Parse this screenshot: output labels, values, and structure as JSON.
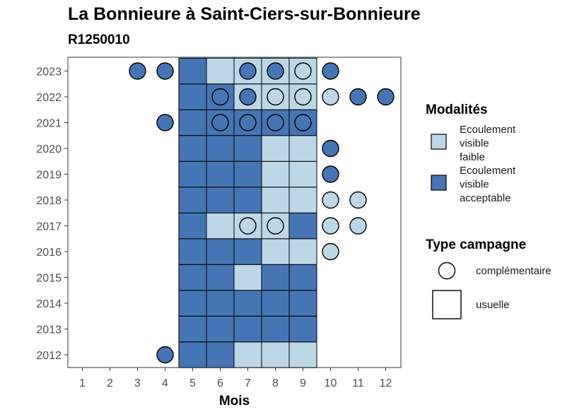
{
  "chart_data": {
    "type": "heatmap",
    "title": "La Bonnieure à Saint-Ciers-sur-Bonnieure",
    "subtitle": "R1250010",
    "xlabel": "Mois",
    "ylabel": "",
    "x_ticks": [
      "1",
      "2",
      "3",
      "4",
      "5",
      "6",
      "7",
      "8",
      "9",
      "10",
      "11",
      "12"
    ],
    "y_ticks": [
      "2012",
      "2013",
      "2014",
      "2015",
      "2016",
      "2017",
      "2018",
      "2019",
      "2020",
      "2021",
      "2022",
      "2023"
    ],
    "colors": {
      "faible": "#bdd7e7",
      "acceptable": "#4575b4",
      "outline": "#000000"
    },
    "legend": {
      "modalites_title": "Modalités",
      "modalites": [
        {
          "key": "faible",
          "lines": [
            "Ecoulement",
            "visible",
            "faible"
          ]
        },
        {
          "key": "acceptable",
          "lines": [
            "Ecoulement",
            "visible",
            "acceptable"
          ]
        }
      ],
      "type_title": "Type campagne",
      "types": [
        {
          "key": "circle",
          "label": "complémentaire"
        },
        {
          "key": "square",
          "label": "usuelle"
        }
      ]
    },
    "observations": [
      {
        "year": 2012,
        "month": 4,
        "type": "complementaire",
        "modalite": "acceptable"
      },
      {
        "year": 2012,
        "month": 5,
        "type": "usuelle",
        "modalite": "acceptable"
      },
      {
        "year": 2012,
        "month": 6,
        "type": "usuelle",
        "modalite": "acceptable"
      },
      {
        "year": 2012,
        "month": 7,
        "type": "usuelle",
        "modalite": "faible"
      },
      {
        "year": 2012,
        "month": 8,
        "type": "usuelle",
        "modalite": "faible"
      },
      {
        "year": 2012,
        "month": 9,
        "type": "usuelle",
        "modalite": "faible"
      },
      {
        "year": 2013,
        "month": 5,
        "type": "usuelle",
        "modalite": "acceptable"
      },
      {
        "year": 2013,
        "month": 6,
        "type": "usuelle",
        "modalite": "acceptable"
      },
      {
        "year": 2013,
        "month": 7,
        "type": "usuelle",
        "modalite": "acceptable"
      },
      {
        "year": 2013,
        "month": 8,
        "type": "usuelle",
        "modalite": "acceptable"
      },
      {
        "year": 2013,
        "month": 9,
        "type": "usuelle",
        "modalite": "acceptable"
      },
      {
        "year": 2014,
        "month": 5,
        "type": "usuelle",
        "modalite": "acceptable"
      },
      {
        "year": 2014,
        "month": 6,
        "type": "usuelle",
        "modalite": "acceptable"
      },
      {
        "year": 2014,
        "month": 7,
        "type": "usuelle",
        "modalite": "acceptable"
      },
      {
        "year": 2014,
        "month": 8,
        "type": "usuelle",
        "modalite": "acceptable"
      },
      {
        "year": 2014,
        "month": 9,
        "type": "usuelle",
        "modalite": "acceptable"
      },
      {
        "year": 2015,
        "month": 5,
        "type": "usuelle",
        "modalite": "acceptable"
      },
      {
        "year": 2015,
        "month": 6,
        "type": "usuelle",
        "modalite": "acceptable"
      },
      {
        "year": 2015,
        "month": 7,
        "type": "usuelle",
        "modalite": "faible"
      },
      {
        "year": 2015,
        "month": 8,
        "type": "usuelle",
        "modalite": "acceptable"
      },
      {
        "year": 2015,
        "month": 9,
        "type": "usuelle",
        "modalite": "acceptable"
      },
      {
        "year": 2016,
        "month": 5,
        "type": "usuelle",
        "modalite": "acceptable"
      },
      {
        "year": 2016,
        "month": 6,
        "type": "usuelle",
        "modalite": "acceptable"
      },
      {
        "year": 2016,
        "month": 7,
        "type": "usuelle",
        "modalite": "acceptable"
      },
      {
        "year": 2016,
        "month": 8,
        "type": "usuelle",
        "modalite": "faible"
      },
      {
        "year": 2016,
        "month": 9,
        "type": "usuelle",
        "modalite": "faible"
      },
      {
        "year": 2016,
        "month": 10,
        "type": "complementaire",
        "modalite": "faible"
      },
      {
        "year": 2017,
        "month": 5,
        "type": "usuelle",
        "modalite": "acceptable"
      },
      {
        "year": 2017,
        "month": 6,
        "type": "usuelle",
        "modalite": "faible"
      },
      {
        "year": 2017,
        "month": 7,
        "type": "usuelle",
        "modalite": "faible"
      },
      {
        "year": 2017,
        "month": 7,
        "type": "complementaire",
        "modalite": "faible"
      },
      {
        "year": 2017,
        "month": 8,
        "type": "usuelle",
        "modalite": "faible"
      },
      {
        "year": 2017,
        "month": 8,
        "type": "complementaire",
        "modalite": "faible"
      },
      {
        "year": 2017,
        "month": 9,
        "type": "usuelle",
        "modalite": "acceptable"
      },
      {
        "year": 2017,
        "month": 10,
        "type": "complementaire",
        "modalite": "faible"
      },
      {
        "year": 2017,
        "month": 11,
        "type": "complementaire",
        "modalite": "faible"
      },
      {
        "year": 2018,
        "month": 5,
        "type": "usuelle",
        "modalite": "acceptable"
      },
      {
        "year": 2018,
        "month": 6,
        "type": "usuelle",
        "modalite": "acceptable"
      },
      {
        "year": 2018,
        "month": 7,
        "type": "usuelle",
        "modalite": "acceptable"
      },
      {
        "year": 2018,
        "month": 8,
        "type": "usuelle",
        "modalite": "faible"
      },
      {
        "year": 2018,
        "month": 9,
        "type": "usuelle",
        "modalite": "faible"
      },
      {
        "year": 2018,
        "month": 10,
        "type": "complementaire",
        "modalite": "faible"
      },
      {
        "year": 2018,
        "month": 11,
        "type": "complementaire",
        "modalite": "faible"
      },
      {
        "year": 2019,
        "month": 5,
        "type": "usuelle",
        "modalite": "acceptable"
      },
      {
        "year": 2019,
        "month": 6,
        "type": "usuelle",
        "modalite": "acceptable"
      },
      {
        "year": 2019,
        "month": 7,
        "type": "usuelle",
        "modalite": "acceptable"
      },
      {
        "year": 2019,
        "month": 8,
        "type": "usuelle",
        "modalite": "faible"
      },
      {
        "year": 2019,
        "month": 9,
        "type": "usuelle",
        "modalite": "faible"
      },
      {
        "year": 2019,
        "month": 10,
        "type": "complementaire",
        "modalite": "acceptable"
      },
      {
        "year": 2020,
        "month": 5,
        "type": "usuelle",
        "modalite": "acceptable"
      },
      {
        "year": 2020,
        "month": 6,
        "type": "usuelle",
        "modalite": "acceptable"
      },
      {
        "year": 2020,
        "month": 7,
        "type": "usuelle",
        "modalite": "acceptable"
      },
      {
        "year": 2020,
        "month": 8,
        "type": "usuelle",
        "modalite": "faible"
      },
      {
        "year": 2020,
        "month": 9,
        "type": "usuelle",
        "modalite": "faible"
      },
      {
        "year": 2020,
        "month": 10,
        "type": "complementaire",
        "modalite": "acceptable"
      },
      {
        "year": 2021,
        "month": 4,
        "type": "complementaire",
        "modalite": "acceptable"
      },
      {
        "year": 2021,
        "month": 5,
        "type": "usuelle",
        "modalite": "acceptable"
      },
      {
        "year": 2021,
        "month": 6,
        "type": "usuelle",
        "modalite": "acceptable"
      },
      {
        "year": 2021,
        "month": 6,
        "type": "complementaire",
        "modalite": "acceptable"
      },
      {
        "year": 2021,
        "month": 7,
        "type": "usuelle",
        "modalite": "acceptable"
      },
      {
        "year": 2021,
        "month": 7,
        "type": "complementaire",
        "modalite": "acceptable"
      },
      {
        "year": 2021,
        "month": 8,
        "type": "usuelle",
        "modalite": "acceptable"
      },
      {
        "year": 2021,
        "month": 8,
        "type": "complementaire",
        "modalite": "acceptable"
      },
      {
        "year": 2021,
        "month": 9,
        "type": "usuelle",
        "modalite": "acceptable"
      },
      {
        "year": 2021,
        "month": 9,
        "type": "complementaire",
        "modalite": "acceptable"
      },
      {
        "year": 2022,
        "month": 5,
        "type": "usuelle",
        "modalite": "acceptable"
      },
      {
        "year": 2022,
        "month": 6,
        "type": "usuelle",
        "modalite": "acceptable"
      },
      {
        "year": 2022,
        "month": 6,
        "type": "complementaire",
        "modalite": "acceptable"
      },
      {
        "year": 2022,
        "month": 7,
        "type": "usuelle",
        "modalite": "faible"
      },
      {
        "year": 2022,
        "month": 7,
        "type": "complementaire",
        "modalite": "acceptable"
      },
      {
        "year": 2022,
        "month": 8,
        "type": "usuelle",
        "modalite": "faible"
      },
      {
        "year": 2022,
        "month": 8,
        "type": "complementaire",
        "modalite": "faible"
      },
      {
        "year": 2022,
        "month": 9,
        "type": "usuelle",
        "modalite": "faible"
      },
      {
        "year": 2022,
        "month": 9,
        "type": "complementaire",
        "modalite": "faible"
      },
      {
        "year": 2022,
        "month": 10,
        "type": "complementaire",
        "modalite": "faible"
      },
      {
        "year": 2022,
        "month": 11,
        "type": "complementaire",
        "modalite": "acceptable"
      },
      {
        "year": 2022,
        "month": 12,
        "type": "complementaire",
        "modalite": "acceptable"
      },
      {
        "year": 2023,
        "month": 3,
        "type": "complementaire",
        "modalite": "acceptable"
      },
      {
        "year": 2023,
        "month": 4,
        "type": "complementaire",
        "modalite": "acceptable"
      },
      {
        "year": 2023,
        "month": 5,
        "type": "usuelle",
        "modalite": "acceptable"
      },
      {
        "year": 2023,
        "month": 6,
        "type": "usuelle",
        "modalite": "faible"
      },
      {
        "year": 2023,
        "month": 7,
        "type": "usuelle",
        "modalite": "faible"
      },
      {
        "year": 2023,
        "month": 7,
        "type": "complementaire",
        "modalite": "acceptable"
      },
      {
        "year": 2023,
        "month": 8,
        "type": "usuelle",
        "modalite": "faible"
      },
      {
        "year": 2023,
        "month": 8,
        "type": "complementaire",
        "modalite": "acceptable"
      },
      {
        "year": 2023,
        "month": 9,
        "type": "usuelle",
        "modalite": "faible"
      },
      {
        "year": 2023,
        "month": 9,
        "type": "complementaire",
        "modalite": "faible"
      },
      {
        "year": 2023,
        "month": 10,
        "type": "complementaire",
        "modalite": "acceptable"
      }
    ]
  }
}
